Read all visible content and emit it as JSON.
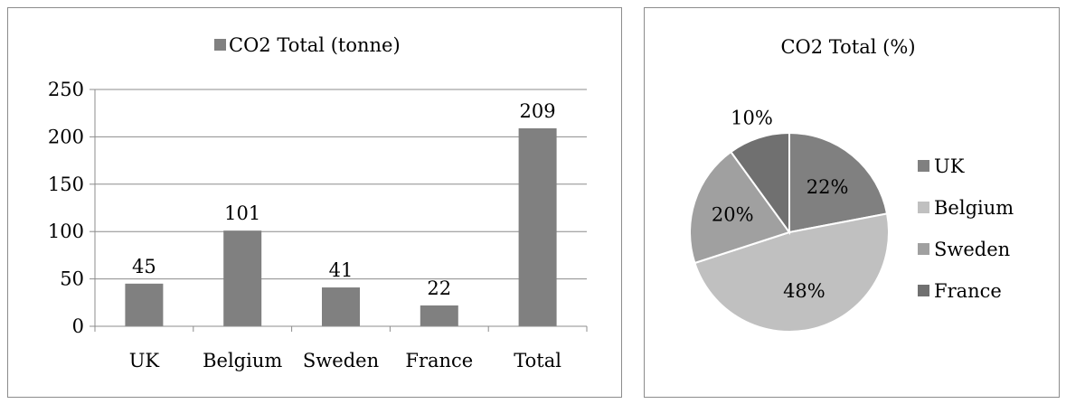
{
  "chart_data": [
    {
      "type": "bar",
      "legend_entry": "CO2 Total (tonne)",
      "legend_placement": "top",
      "categories": [
        "UK",
        "Belgium",
        "Sweden",
        "France",
        "Total"
      ],
      "values": [
        45,
        101,
        41,
        22,
        209
      ],
      "data_labels": [
        "45",
        "101",
        "41",
        "22",
        "209"
      ],
      "ylim": [
        0,
        250
      ],
      "yticks": [
        "0",
        "50",
        "100",
        "150",
        "200",
        "250"
      ],
      "ytick_values": [
        0,
        50,
        100,
        150,
        200,
        250
      ],
      "grid": true,
      "bar_color": "#808080"
    },
    {
      "type": "pie",
      "title": "CO2 Total (%)",
      "labels": [
        "UK",
        "Belgium",
        "Sweden",
        "France"
      ],
      "values": [
        22,
        48,
        20,
        10
      ],
      "data_labels": [
        "22%",
        "48%",
        "20%",
        "10%"
      ],
      "colors": [
        "#808080",
        "#c0c0c0",
        "#a0a0a0",
        "#707070"
      ],
      "legend_placement": "right"
    }
  ]
}
